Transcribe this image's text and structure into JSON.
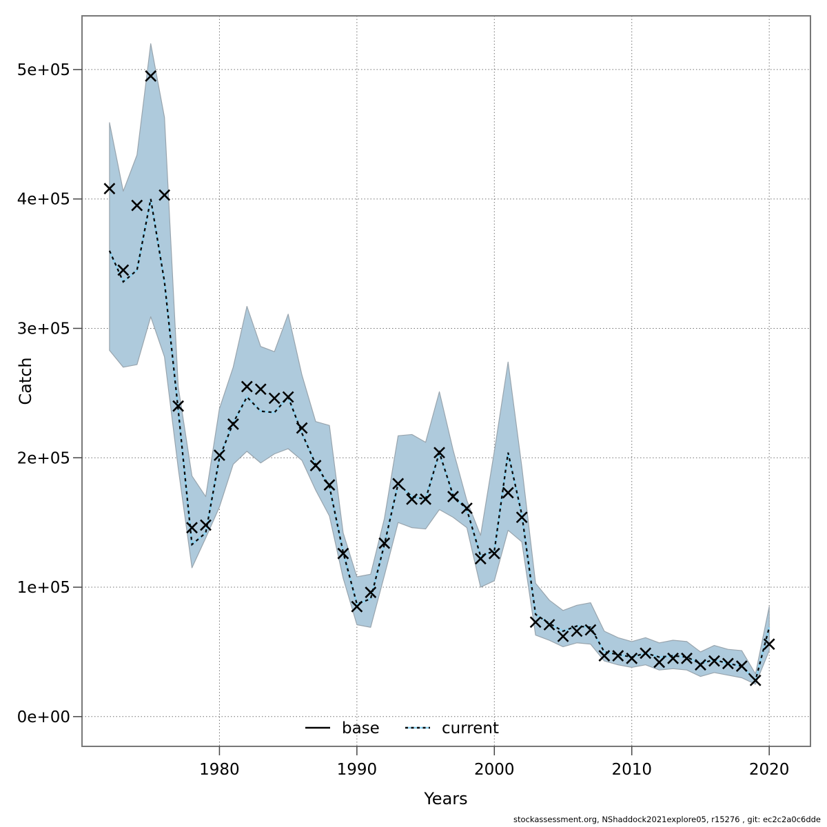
{
  "figure": {
    "footer": "stockassessment.org, NShaddock2021explore05, r15276 , git: ec2c2a0c6dde",
    "background": "#ffffff",
    "border_color": "#777777",
    "grid_color": "#6f6f6f"
  },
  "legend": {
    "items": [
      {
        "label": "base",
        "style": "solid",
        "color": "#000000"
      },
      {
        "label": "current",
        "style": "dotted",
        "color": "#8ed2f0"
      }
    ]
  },
  "chart_data": {
    "type": "line",
    "title": "",
    "xlabel": "Years",
    "ylabel": "Catch",
    "xlim": [
      1970.0,
      2023.0
    ],
    "ylim": [
      -23000,
      541500
    ],
    "grid": "dotted",
    "x_ticks": [
      1980,
      1990,
      2000,
      2010,
      2020
    ],
    "y_ticks": [
      {
        "value": 0,
        "label": "0e+00"
      },
      {
        "value": 100000,
        "label": "1e+05"
      },
      {
        "value": 200000,
        "label": "2e+05"
      },
      {
        "value": 300000,
        "label": "3e+05"
      },
      {
        "value": 400000,
        "label": "4e+05"
      },
      {
        "value": 500000,
        "label": "5e+05"
      }
    ],
    "band_color": "#aecadc",
    "band_edge_color": "#98a4ad",
    "marker_color": "#000000",
    "years": [
      1972,
      1973,
      1974,
      1975,
      1976,
      1977,
      1978,
      1979,
      1980,
      1981,
      1982,
      1983,
      1984,
      1985,
      1986,
      1987,
      1988,
      1989,
      1990,
      1991,
      1992,
      1993,
      1994,
      1995,
      1996,
      1997,
      1998,
      1999,
      2000,
      2001,
      2002,
      2003,
      2004,
      2005,
      2006,
      2007,
      2008,
      2009,
      2010,
      2011,
      2012,
      2013,
      2014,
      2015,
      2016,
      2017,
      2018,
      2019,
      2020
    ],
    "series": [
      {
        "name": "observed-catch",
        "marker": "x",
        "color": "#000000",
        "values": [
          408000,
          345000,
          395000,
          495000,
          403000,
          240000,
          146000,
          148000,
          202000,
          226000,
          255000,
          253000,
          246000,
          247000,
          223000,
          194000,
          179000,
          126000,
          85000,
          96000,
          134000,
          180000,
          168000,
          168000,
          204000,
          170000,
          161000,
          122000,
          126000,
          173000,
          154000,
          73000,
          71000,
          62000,
          66000,
          67000,
          47000,
          47000,
          45000,
          49000,
          42000,
          45000,
          45000,
          40000,
          43000,
          41000,
          39000,
          28000,
          56000
        ]
      },
      {
        "name": "current-fit",
        "style": "dotted",
        "color": "#8ed2f0",
        "values": [
          360000,
          336000,
          345000,
          400000,
          336000,
          237000,
          133000,
          142000,
          200000,
          227000,
          247000,
          236000,
          235000,
          247000,
          219000,
          195000,
          178000,
          127000,
          87000,
          91000,
          133000,
          180000,
          170000,
          168000,
          204000,
          171000,
          160000,
          124000,
          128000,
          204000,
          156000,
          79000,
          72000,
          66000,
          70000,
          69000,
          50000,
          48000,
          46000,
          49000,
          46000,
          47000,
          46000,
          41000,
          44000,
          41000,
          39000,
          28000,
          69000
        ]
      }
    ],
    "band": {
      "name": "current-confidence-interval",
      "lower": [
        283000,
        270000,
        272000,
        309000,
        278000,
        192000,
        115000,
        138000,
        162000,
        195000,
        205000,
        196000,
        203000,
        207000,
        198000,
        175000,
        155000,
        107000,
        71000,
        69000,
        109000,
        150000,
        146000,
        145000,
        160000,
        154000,
        146000,
        100000,
        105000,
        144000,
        135000,
        63000,
        59000,
        54000,
        57000,
        56000,
        43000,
        40000,
        38000,
        40000,
        36000,
        37000,
        36000,
        31000,
        34000,
        32000,
        30000,
        25000,
        51000
      ],
      "upper": [
        459000,
        406000,
        434000,
        520000,
        463000,
        255000,
        186000,
        170000,
        238000,
        270000,
        317000,
        286000,
        282000,
        311000,
        264000,
        228000,
        225000,
        142000,
        108000,
        110000,
        153000,
        217000,
        218000,
        212000,
        251000,
        206000,
        167000,
        140000,
        205000,
        274000,
        193000,
        103000,
        90000,
        82000,
        86000,
        88000,
        66000,
        61000,
        58000,
        61000,
        57000,
        59000,
        58000,
        50000,
        55000,
        52000,
        51000,
        33000,
        85000
      ]
    }
  }
}
